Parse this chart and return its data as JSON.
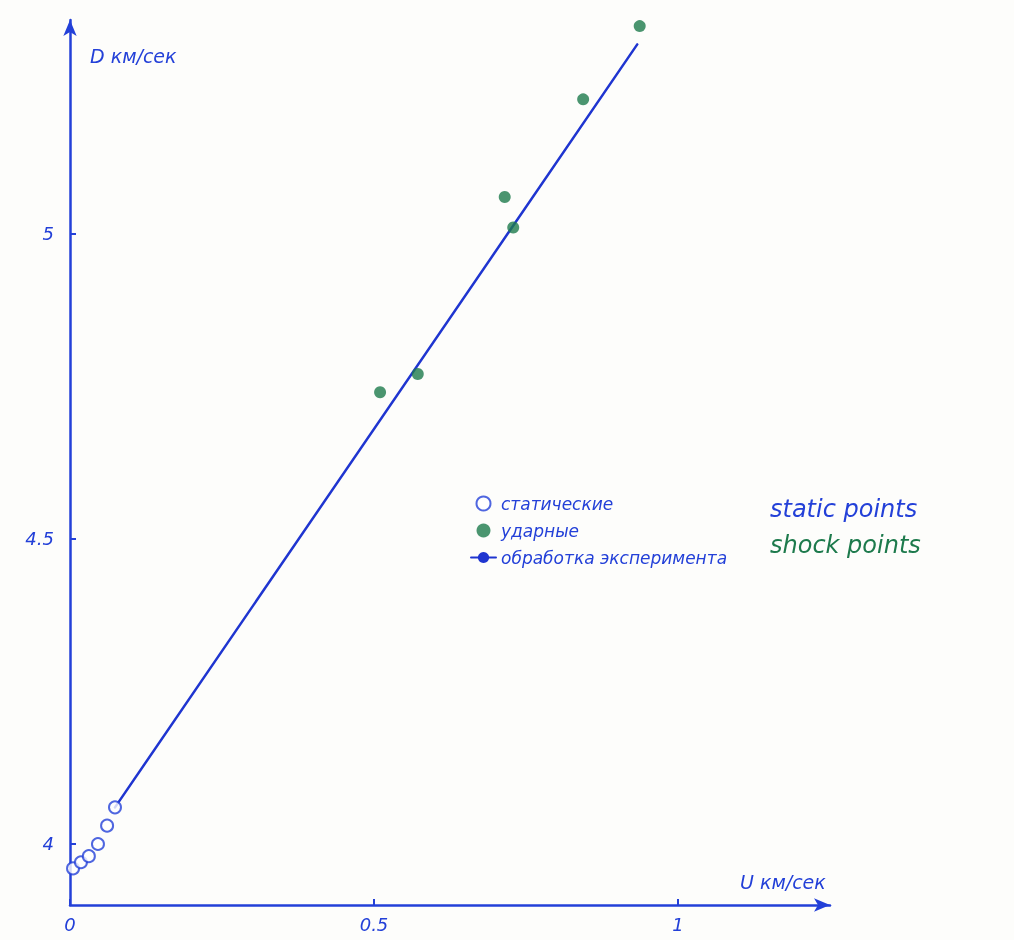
{
  "chart_data": {
    "type": "scatter",
    "xlabel": "U км/сек",
    "ylabel": "D км/сек",
    "xlim": [
      0,
      1.25
    ],
    "xticks": [
      0,
      0.5,
      1
    ],
    "ylim": [
      3.9,
      5.35
    ],
    "yticks": [
      4,
      4.5,
      5
    ],
    "grid": false,
    "legend": "right",
    "marker": "circle",
    "series": [
      {
        "name": "статические",
        "color": "#2340d8",
        "x": [
          0.005,
          0.018,
          0.031,
          0.046,
          0.061,
          0.074
        ],
        "values": [
          3.96,
          3.97,
          3.98,
          4.0,
          4.03,
          4.06
        ]
      },
      {
        "name": "ударные",
        "color": "#1d7a4c",
        "x": [
          0.51,
          0.572,
          0.715,
          0.729,
          0.844,
          0.937
        ],
        "values": [
          4.74,
          4.77,
          5.06,
          5.01,
          5.22,
          5.34
        ]
      },
      {
        "name": "обработка эксперимента",
        "type": "line",
        "color": "#1f35d0",
        "marker": "none",
        "x": [
          0.074,
          0.933
        ],
        "values": [
          4.06,
          5.31
        ]
      }
    ],
    "annotations": [
      "static points",
      "shock points"
    ]
  }
}
